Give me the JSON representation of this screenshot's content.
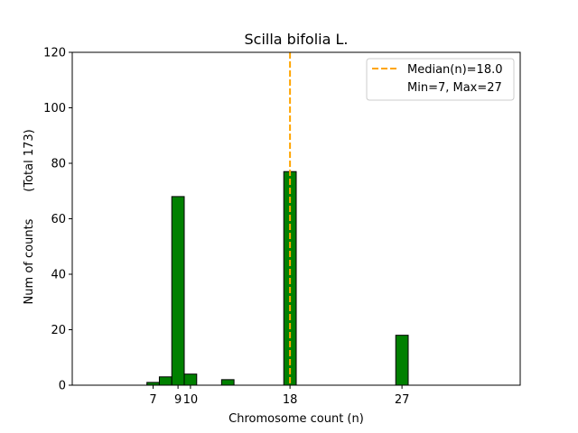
{
  "chart_data": {
    "type": "bar",
    "title": "Scilla bifolia L.",
    "xlabel": "Chromosome count (n)",
    "ylabel": "Num of counts",
    "ylabel_total": "(Total 173)",
    "xlim": [
      0.5,
      36.5
    ],
    "ylim": [
      0,
      120
    ],
    "yticks": [
      0,
      20,
      40,
      60,
      80,
      100,
      120
    ],
    "xticks": [
      7,
      9,
      10,
      18,
      27
    ],
    "bar_color": "#008000",
    "bar_edge_color": "#000000",
    "bars": [
      {
        "x": 7,
        "value": 1
      },
      {
        "x": 8,
        "value": 3
      },
      {
        "x": 9,
        "value": 68
      },
      {
        "x": 10,
        "value": 4
      },
      {
        "x": 13,
        "value": 2
      },
      {
        "x": 18,
        "value": 77
      },
      {
        "x": 27,
        "value": 18
      }
    ],
    "baseline_extent": [
      7,
      30
    ],
    "median": {
      "value": 18.0,
      "color": "#FFA500",
      "style": "dashed"
    },
    "legend": {
      "position": "top-right",
      "entries": [
        "Median(n)=18.0",
        "Min=7, Max=27"
      ]
    },
    "grid": false
  }
}
